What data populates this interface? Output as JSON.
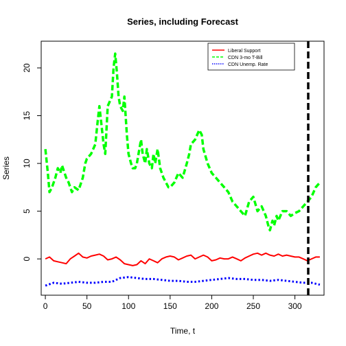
{
  "chart_data": {
    "type": "line",
    "title": "Series, including Forecast",
    "xlabel": "Time, t",
    "ylabel": "Series",
    "xlim": [
      -5,
      335
    ],
    "ylim": [
      -3.8,
      22.8
    ],
    "xticks": [
      0,
      50,
      100,
      150,
      200,
      250,
      300
    ],
    "yticks": [
      0,
      5,
      10,
      15,
      20
    ],
    "grid": false,
    "legend_position": "top-right",
    "forecast_line": {
      "x": 316,
      "color": "#000000"
    },
    "series": [
      {
        "name": "Liberal Support",
        "color": "#ff0000",
        "style": "solid",
        "x": [
          0,
          5,
          10,
          15,
          20,
          25,
          30,
          35,
          40,
          45,
          50,
          55,
          60,
          65,
          70,
          75,
          80,
          85,
          90,
          95,
          100,
          105,
          110,
          115,
          120,
          125,
          130,
          135,
          140,
          145,
          150,
          155,
          160,
          165,
          170,
          175,
          180,
          185,
          190,
          195,
          200,
          205,
          210,
          215,
          220,
          225,
          230,
          235,
          240,
          245,
          250,
          255,
          260,
          265,
          270,
          275,
          280,
          285,
          290,
          295,
          300,
          305,
          310,
          315,
          320,
          325,
          330
        ],
        "values": [
          0.0,
          0.2,
          -0.2,
          -0.3,
          -0.4,
          -0.5,
          0.0,
          0.3,
          0.6,
          0.2,
          0.1,
          0.3,
          0.4,
          0.5,
          0.3,
          -0.1,
          0.0,
          0.2,
          -0.1,
          -0.5,
          -0.6,
          -0.7,
          -0.6,
          -0.2,
          -0.5,
          0.0,
          -0.2,
          -0.4,
          0.0,
          0.2,
          0.3,
          0.2,
          -0.1,
          0.1,
          0.3,
          0.4,
          0.0,
          0.2,
          0.4,
          0.2,
          -0.2,
          -0.1,
          0.1,
          0.0,
          0.0,
          0.2,
          0.0,
          -0.2,
          0.1,
          0.3,
          0.5,
          0.6,
          0.4,
          0.6,
          0.4,
          0.3,
          0.5,
          0.3,
          0.4,
          0.3,
          0.2,
          0.2,
          0.0,
          -0.2,
          0.0,
          0.2,
          0.2
        ]
      },
      {
        "name": "CDN 3-mo T-Bill",
        "color": "#00ff00",
        "style": "dashed",
        "x": [
          0,
          3,
          5,
          8,
          12,
          15,
          18,
          20,
          25,
          28,
          32,
          35,
          40,
          45,
          48,
          50,
          55,
          60,
          63,
          65,
          70,
          72,
          75,
          80,
          82,
          84,
          86,
          88,
          90,
          93,
          95,
          98,
          100,
          103,
          105,
          108,
          110,
          112,
          115,
          117,
          120,
          122,
          125,
          128,
          130,
          132,
          135,
          138,
          140,
          142,
          145,
          148,
          150,
          155,
          160,
          165,
          170,
          173,
          175,
          180,
          185,
          188,
          190,
          195,
          200,
          205,
          210,
          215,
          220,
          225,
          230,
          235,
          240,
          245,
          250,
          255,
          260,
          265,
          268,
          270,
          273,
          275,
          278,
          280,
          285,
          290,
          295,
          300,
          305,
          310,
          315,
          320,
          325,
          330
        ],
        "values": [
          11.5,
          9.0,
          7.0,
          7.5,
          8.5,
          9.5,
          9.0,
          9.8,
          8.5,
          8.0,
          7.0,
          7.5,
          7.2,
          8.5,
          10.0,
          10.5,
          11.0,
          12.0,
          14.5,
          16.0,
          12.0,
          11.0,
          16.0,
          17.0,
          20.0,
          21.5,
          19.5,
          17.0,
          16.0,
          15.5,
          17.0,
          13.0,
          11.0,
          10.0,
          9.5,
          9.5,
          10.0,
          11.0,
          12.5,
          11.0,
          10.0,
          11.5,
          10.0,
          9.5,
          11.0,
          10.0,
          11.5,
          9.5,
          9.0,
          8.5,
          8.0,
          7.5,
          7.5,
          8.0,
          9.0,
          8.5,
          10.0,
          11.0,
          12.0,
          12.5,
          13.5,
          13.0,
          11.5,
          10.0,
          9.0,
          8.5,
          8.0,
          7.5,
          7.0,
          6.0,
          5.5,
          5.0,
          4.5,
          6.0,
          6.5,
          5.0,
          5.5,
          4.5,
          3.5,
          3.0,
          4.0,
          3.5,
          4.5,
          4.0,
          5.0,
          5.0,
          4.5,
          4.8,
          5.0,
          5.5,
          6.0,
          6.5,
          7.5,
          8.0
        ]
      },
      {
        "name": "CDN Unemp. Rate",
        "color": "#0000ff",
        "style": "dotted",
        "x": [
          0,
          10,
          20,
          30,
          40,
          50,
          60,
          70,
          80,
          90,
          100,
          110,
          120,
          130,
          140,
          150,
          160,
          170,
          180,
          190,
          200,
          210,
          220,
          230,
          240,
          250,
          260,
          270,
          280,
          290,
          300,
          310,
          320,
          325,
          330
        ],
        "values": [
          -2.8,
          -2.5,
          -2.6,
          -2.5,
          -2.4,
          -2.5,
          -2.5,
          -2.4,
          -2.4,
          -2.0,
          -1.9,
          -2.0,
          -2.1,
          -2.1,
          -2.2,
          -2.3,
          -2.3,
          -2.4,
          -2.4,
          -2.3,
          -2.2,
          -2.1,
          -2.0,
          -2.1,
          -2.1,
          -2.2,
          -2.2,
          -2.3,
          -2.2,
          -2.3,
          -2.4,
          -2.5,
          -2.5,
          -2.6,
          -2.7
        ]
      }
    ]
  }
}
